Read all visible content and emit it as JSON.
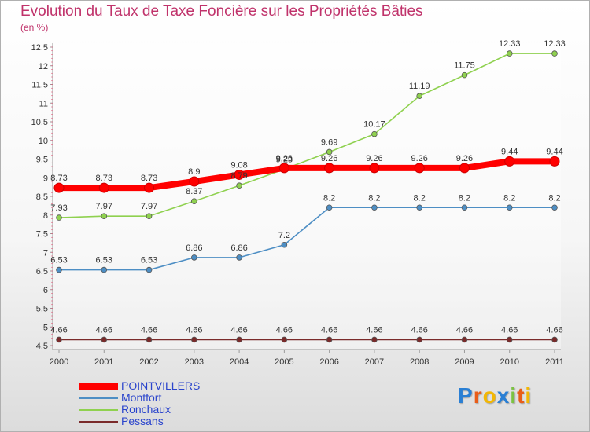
{
  "title": "Evolution du Taux de Taxe Foncière sur les Propriétés Bâties",
  "subtitle": "(en %)",
  "chart_data": {
    "type": "line",
    "x": [
      "2000",
      "2001",
      "2002",
      "2003",
      "2004",
      "2005",
      "2006",
      "2007",
      "2008",
      "2009",
      "2010",
      "2011"
    ],
    "ylim": [
      4.5,
      12.5
    ],
    "yticks": [
      4.5,
      5,
      5.5,
      6,
      6.5,
      7,
      7.5,
      8,
      8.5,
      9,
      9.5,
      10,
      10.5,
      11,
      11.5,
      12,
      12.5
    ],
    "series": [
      {
        "name": "POINTVILLERS",
        "color": "#ff0000",
        "values": [
          8.73,
          8.73,
          8.73,
          8.9,
          9.08,
          9.26,
          9.26,
          9.26,
          9.26,
          9.26,
          9.44,
          9.44
        ]
      },
      {
        "name": "Montfort",
        "color": "#4d8ec4",
        "values": [
          6.53,
          6.53,
          6.53,
          6.86,
          6.86,
          7.2,
          8.2,
          8.2,
          8.2,
          8.2,
          8.2,
          8.2
        ]
      },
      {
        "name": "Ronchaux",
        "color": "#8fd14f",
        "values": [
          7.93,
          7.97,
          7.97,
          8.37,
          8.79,
          9.23,
          9.69,
          10.17,
          11.19,
          11.75,
          12.33,
          12.33
        ]
      },
      {
        "name": "Pessans",
        "color": "#7a2a2a",
        "values": [
          4.66,
          4.66,
          4.66,
          4.66,
          4.66,
          4.66,
          4.66,
          4.66,
          4.66,
          4.66,
          4.66,
          4.66
        ]
      }
    ]
  },
  "logo": {
    "text": "Proxiti",
    "letters": [
      "P",
      "r",
      "o",
      "x",
      "i",
      "t",
      "i"
    ],
    "colors": [
      "#2a7fd4",
      "#e85d1a",
      "#f2b705",
      "#2a7fd4",
      "#7cc242",
      "#e85d1a",
      "#f2b705"
    ]
  }
}
